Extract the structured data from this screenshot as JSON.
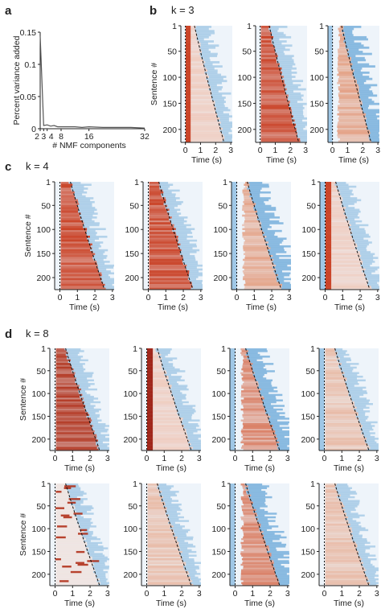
{
  "chart_data": [
    {
      "panel": "a",
      "type": "line",
      "xlabel": "# NMF components",
      "ylabel": "Percent variance added",
      "xticks": [
        2,
        3,
        4,
        8,
        16,
        32
      ],
      "yticks": [
        0,
        0.05,
        0.1,
        0.15
      ],
      "xlim": [
        2,
        32
      ],
      "ylim": [
        0,
        0.15
      ],
      "series": [
        {
          "x": [
            2,
            3,
            4,
            5,
            6,
            7,
            8,
            10,
            12,
            14,
            16,
            20,
            24,
            28,
            32
          ],
          "values": [
            0.144,
            0.005,
            0.006,
            0.004,
            0.005,
            0.003,
            0.003,
            0.003,
            0.003,
            0.002,
            0.003,
            0.002,
            0.002,
            0.002,
            0.001
          ]
        }
      ]
    },
    {
      "panel": "b",
      "type": "heatmap",
      "title": "k = 3",
      "xlabel": "Time (s)",
      "ylabel": "Sentence #",
      "xticks": [
        0,
        1,
        2,
        3
      ],
      "yticks": [
        1,
        50,
        100,
        150,
        200
      ],
      "xlim": [
        -0.3,
        3.1
      ],
      "ylim": [
        1,
        225
      ],
      "components": [
        {
          "color": "#c83b1e",
          "pattern": "onset"
        },
        {
          "color": "#c83b1e",
          "pattern": "sustained"
        },
        {
          "color": "#e0825a",
          "pattern": "late"
        }
      ]
    },
    {
      "panel": "c",
      "type": "heatmap",
      "title": "k = 4",
      "xlabel": "Time (s)",
      "ylabel": "Sentence #",
      "xticks": [
        0,
        1,
        2,
        3
      ],
      "yticks": [
        1,
        50,
        100,
        150,
        200
      ],
      "xlim": [
        -0.3,
        3.1
      ],
      "ylim": [
        1,
        225
      ],
      "components": [
        {
          "color": "#c83b1e",
          "pattern": "sustained"
        },
        {
          "color": "#c83b1e",
          "pattern": "sustained"
        },
        {
          "color": "#e0825a",
          "pattern": "late"
        },
        {
          "color": "#c83b1e",
          "pattern": "onset"
        }
      ]
    },
    {
      "panel": "d",
      "type": "heatmap",
      "title": "k = 8",
      "xlabel": "Time (s)",
      "ylabel": "Sentence #",
      "xticks": [
        0,
        1,
        2,
        3
      ],
      "yticks": [
        1,
        50,
        100,
        150,
        200
      ],
      "xlim": [
        -0.3,
        3.1
      ],
      "ylim": [
        1,
        225
      ],
      "components": [
        {
          "color": "#b0301a",
          "pattern": "sustained"
        },
        {
          "color": "#9c1c10",
          "pattern": "onset"
        },
        {
          "color": "#d2542e",
          "pattern": "late"
        },
        {
          "color": "#e58a60",
          "pattern": "weak"
        },
        {
          "color": "#b0301a",
          "pattern": "sparse"
        },
        {
          "color": "#e58a60",
          "pattern": "weak"
        },
        {
          "color": "#d2542e",
          "pattern": "late"
        },
        {
          "color": "#e58a60",
          "pattern": "weak"
        }
      ]
    }
  ],
  "colors": {
    "red": "#c83b1e",
    "blue": "#6aa8d8",
    "background": "#eef4fa"
  }
}
